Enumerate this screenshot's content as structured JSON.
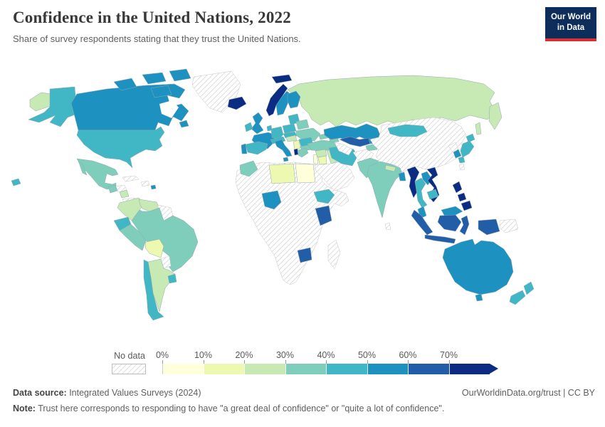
{
  "header": {
    "title": "Confidence in the United Nations, 2022",
    "subtitle": "Share of survey respondents stating that they trust the United Nations.",
    "logo": {
      "line1": "Our World",
      "line2": "in Data",
      "bg_color": "#0d2e5b",
      "accent_color": "#dc2f30"
    }
  },
  "legend": {
    "no_data_label": "No data",
    "tick_labels": [
      "0%",
      "10%",
      "20%",
      "30%",
      "40%",
      "50%",
      "60%",
      "70%"
    ]
  },
  "footer": {
    "source_label": "Data source:",
    "source_text": " Integrated Values Surveys (2024)",
    "credit": "OurWorldinData.org/trust | CC BY",
    "note_label": "Note:",
    "note_text": " Trust here corresponds to responding to have \"a great deal of confidence\" or \"quite a lot of confidence\"."
  },
  "chart_data": {
    "type": "choropleth",
    "title": "Confidence in the United Nations, 2022",
    "year": 2022,
    "metric": "Share of survey respondents stating that they trust the United Nations",
    "unit": "%",
    "color_scale": {
      "palette": "YlGnBu",
      "no_data_label": "No data",
      "no_data_fill": "hatch",
      "bins": [
        {
          "range": "0-10%",
          "color": "#ffffd9"
        },
        {
          "range": "10-20%",
          "color": "#edf8b1"
        },
        {
          "range": "20-30%",
          "color": "#c7e9b4"
        },
        {
          "range": "30-40%",
          "color": "#7fcdbb"
        },
        {
          "range": "40-50%",
          "color": "#41b6c4"
        },
        {
          "range": "50-60%",
          "color": "#1d91c0"
        },
        {
          "range": "60-70%",
          "color": "#225ea8"
        },
        {
          "range": "70%+",
          "color": "#0c2c84"
        }
      ]
    },
    "countries": [
      {
        "id": "canada",
        "name": "Canada",
        "value": "50-60%"
      },
      {
        "id": "united-states",
        "name": "United States",
        "value": "40-50%"
      },
      {
        "id": "mexico",
        "name": "Mexico",
        "value": "30-40%"
      },
      {
        "id": "guatemala",
        "name": "Guatemala",
        "value": "30-40%"
      },
      {
        "id": "honduras",
        "name": "Honduras",
        "value": "No data"
      },
      {
        "id": "nicaragua",
        "name": "Nicaragua",
        "value": "20-30%"
      },
      {
        "id": "costa-rica",
        "name": "Costa Rica & Panama",
        "value": "No data"
      },
      {
        "id": "cuba",
        "name": "Cuba",
        "value": "No data"
      },
      {
        "id": "haiti",
        "name": "Haiti & Dominican Rep.",
        "value": "No data"
      },
      {
        "id": "puerto-rico",
        "name": "Puerto Rico",
        "value": "50-60%"
      },
      {
        "id": "greenland",
        "name": "Greenland",
        "value": "No data"
      },
      {
        "id": "iceland",
        "name": "Iceland",
        "value": "70%+"
      },
      {
        "id": "colombia",
        "name": "Colombia",
        "value": "20-30%"
      },
      {
        "id": "venezuela",
        "name": "Venezuela",
        "value": "20-30%"
      },
      {
        "id": "guyana",
        "name": "Guyana & Suriname",
        "value": "No data"
      },
      {
        "id": "ecuador",
        "name": "Ecuador",
        "value": "40-50%"
      },
      {
        "id": "peru",
        "name": "Peru",
        "value": "30-40%"
      },
      {
        "id": "brazil",
        "name": "Brazil",
        "value": "30-40%"
      },
      {
        "id": "bolivia",
        "name": "Bolivia",
        "value": "10-20%"
      },
      {
        "id": "paraguay",
        "name": "Paraguay",
        "value": "No data"
      },
      {
        "id": "uruguay",
        "name": "Uruguay",
        "value": "40-50%"
      },
      {
        "id": "chile",
        "name": "Chile",
        "value": "40-50%"
      },
      {
        "id": "argentina",
        "name": "Argentina",
        "value": "20-30%"
      },
      {
        "id": "norway",
        "name": "Norway",
        "value": "70%+"
      },
      {
        "id": "sweden",
        "name": "Sweden",
        "value": "50-60%"
      },
      {
        "id": "finland",
        "name": "Finland",
        "value": "50-60%"
      },
      {
        "id": "denmark",
        "name": "Denmark",
        "value": "40-50%"
      },
      {
        "id": "united-kingdom",
        "name": "United Kingdom",
        "value": "50-60%"
      },
      {
        "id": "ireland",
        "name": "Ireland",
        "value": "40-50%"
      },
      {
        "id": "france",
        "name": "France",
        "value": "50-60%"
      },
      {
        "id": "spain",
        "name": "Spain",
        "value": "40-50%"
      },
      {
        "id": "portugal",
        "name": "Portugal",
        "value": "50-60%"
      },
      {
        "id": "germany",
        "name": "Germany",
        "value": "40-50%"
      },
      {
        "id": "netherlands",
        "name": "Netherlands",
        "value": "40-50%"
      },
      {
        "id": "austria",
        "name": "Austria & Switzerland",
        "value": "40-50%"
      },
      {
        "id": "czechia",
        "name": "Czechia & Slovakia",
        "value": "40-50%"
      },
      {
        "id": "italy",
        "name": "Italy",
        "value": "50-60%"
      },
      {
        "id": "poland",
        "name": "Poland",
        "value": "40-50%"
      },
      {
        "id": "baltics",
        "name": "Baltic states",
        "value": "40-50%"
      },
      {
        "id": "belarus",
        "name": "Belarus",
        "value": "30-40%"
      },
      {
        "id": "ukraine",
        "name": "Ukraine",
        "value": "30-40%"
      },
      {
        "id": "hungary",
        "name": "Hungary",
        "value": "20-30%"
      },
      {
        "id": "romania",
        "name": "Romania",
        "value": "40-50%"
      },
      {
        "id": "serbia",
        "name": "Serbia",
        "value": "10-20%"
      },
      {
        "id": "albania",
        "name": "Albania",
        "value": "70%+"
      },
      {
        "id": "greece",
        "name": "Greece",
        "value": "30-40%"
      },
      {
        "id": "bulgaria",
        "name": "Bulgaria",
        "value": "30-40%"
      },
      {
        "id": "russia",
        "name": "Russia",
        "value": "20-30%"
      },
      {
        "id": "morocco",
        "name": "Morocco",
        "value": "30-40%"
      },
      {
        "id": "libya",
        "name": "Libya",
        "value": "10-20%"
      },
      {
        "id": "egypt",
        "name": "Egypt",
        "value": "0-10%"
      },
      {
        "id": "nigeria",
        "name": "Nigeria",
        "value": "50-60%"
      },
      {
        "id": "ethiopia",
        "name": "Ethiopia",
        "value": "40-50%"
      },
      {
        "id": "kenya",
        "name": "Kenya",
        "value": "60-70%"
      },
      {
        "id": "zimbabwe",
        "name": "Zimbabwe",
        "value": "60-70%"
      },
      {
        "id": "madagascar",
        "name": "Madagascar",
        "value": "No data"
      },
      {
        "id": "africa-other",
        "name": "Rest of Africa",
        "value": "No data"
      },
      {
        "id": "turkey",
        "name": "Turkey",
        "value": "30-40%"
      },
      {
        "id": "georgia",
        "name": "Georgia",
        "value": "30-40%"
      },
      {
        "id": "azerbaijan",
        "name": "Azerbaijan",
        "value": "30-40%"
      },
      {
        "id": "syria",
        "name": "Syria",
        "value": "20-30%"
      },
      {
        "id": "lebanon",
        "name": "Lebanon",
        "value": "0-10%"
      },
      {
        "id": "jordan",
        "name": "Jordan",
        "value": "10-20%"
      },
      {
        "id": "iraq",
        "name": "Iraq",
        "value": "20-30%"
      },
      {
        "id": "saudi-arabia",
        "name": "Arabian Peninsula",
        "value": "No data"
      },
      {
        "id": "iran",
        "name": "Iran",
        "value": "40-50%"
      },
      {
        "id": "kazakhstan",
        "name": "Kazakhstan",
        "value": "50-60%"
      },
      {
        "id": "uzbekistan",
        "name": "Uzbekistan",
        "value": "60-70%"
      },
      {
        "id": "turkmenistan",
        "name": "Turkmenistan",
        "value": "No data"
      },
      {
        "id": "kyrgyzstan",
        "name": "Kyrgyzstan",
        "value": "50-60%"
      },
      {
        "id": "tajikistan",
        "name": "Tajikistan",
        "value": "30-40%"
      },
      {
        "id": "afghanistan",
        "name": "Afghanistan",
        "value": "No data"
      },
      {
        "id": "pakistan",
        "name": "Pakistan",
        "value": "30-40%"
      },
      {
        "id": "india",
        "name": "India",
        "value": "30-40%"
      },
      {
        "id": "nepal",
        "name": "Nepal",
        "value": "20-30%"
      },
      {
        "id": "bangladesh",
        "name": "Bangladesh",
        "value": "50-60%"
      },
      {
        "id": "sri-lanka",
        "name": "Sri Lanka",
        "value": "No data"
      },
      {
        "id": "china",
        "name": "China",
        "value": "No data"
      },
      {
        "id": "taiwan",
        "name": "Taiwan",
        "value": "No data"
      },
      {
        "id": "mongolia",
        "name": "Mongolia",
        "value": "40-50%"
      },
      {
        "id": "north-korea",
        "name": "North Korea",
        "value": "No data"
      },
      {
        "id": "south-korea",
        "name": "South Korea",
        "value": "50-60%"
      },
      {
        "id": "japan",
        "name": "Japan",
        "value": "40-50%"
      },
      {
        "id": "myanmar",
        "name": "Myanmar",
        "value": "70%+"
      },
      {
        "id": "thailand",
        "name": "Thailand",
        "value": "40-50%"
      },
      {
        "id": "laos",
        "name": "Laos",
        "value": "50-60%"
      },
      {
        "id": "vietnam",
        "name": "Vietnam",
        "value": "70%+"
      },
      {
        "id": "cambodia",
        "name": "Cambodia",
        "value": "40-50%"
      },
      {
        "id": "malaysia",
        "name": "Malaysia",
        "value": "50-60%"
      },
      {
        "id": "indonesia",
        "name": "Indonesia",
        "value": "60-70%"
      },
      {
        "id": "philippines",
        "name": "Philippines",
        "value": "70%+"
      },
      {
        "id": "papua-new-guinea",
        "name": "Papua New Guinea",
        "value": "No data"
      },
      {
        "id": "australia",
        "name": "Australia",
        "value": "50-60%"
      },
      {
        "id": "new-zealand",
        "name": "New Zealand",
        "value": "40-50%"
      }
    ]
  }
}
